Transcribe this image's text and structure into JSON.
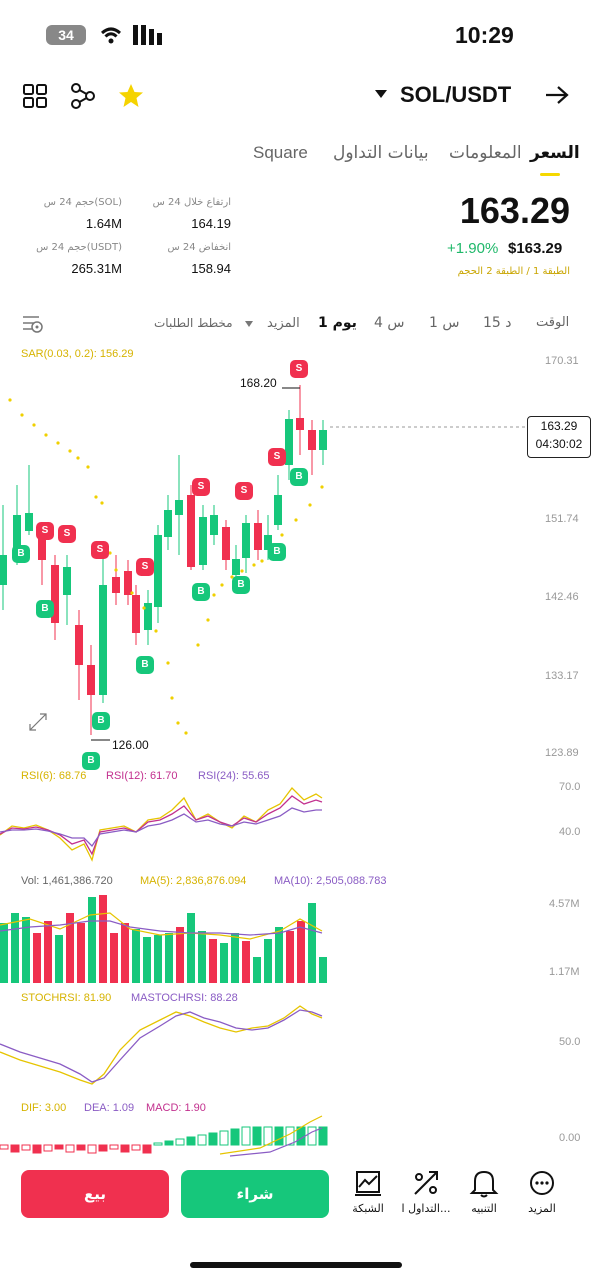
{
  "status_bar": {
    "time": "10:29",
    "battery": "34"
  },
  "header": {
    "pair": "SOL/USDT",
    "icons": [
      "grid-icon",
      "share-icon",
      "star-icon",
      "dropdown-triangle-icon",
      "arrow-right-icon"
    ]
  },
  "tabs": [
    "السعر",
    "المعلومات",
    "بيانات التداول",
    "Square"
  ],
  "price": {
    "last": "163.29",
    "change": "+1.90%",
    "usd": "$163.29",
    "layers": "الطبقة 1 / الطبقة 2   الحجم"
  },
  "stats": {
    "high_label": "ارتفاع خلال 24 س",
    "high_value": "164.19",
    "low_label": "انخفاض 24 س",
    "low_value": "158.94",
    "vol_sol_label": "حجم 24 س(SOL)",
    "vol_sol_value": "1.64M",
    "vol_usdt_label": "حجم 24 س(USDT)",
    "vol_usdt_value": "265.31M"
  },
  "timeframes": {
    "time": "الوقت",
    "m15": "15 د",
    "h1": "1 س",
    "h4": "4 س",
    "d1": "1 يوم",
    "more": "المزيد",
    "orderbook": "مخطط الطلبات"
  },
  "chart": {
    "sar_label": "SAR(0.03, 0.2): 156.29",
    "y_axis": [
      "170.31",
      "151.74",
      "142.46",
      "133.17",
      "123.89"
    ],
    "high_marker": "168.20",
    "low_marker": "126.00",
    "current_price": "163.29",
    "countdown": "04:30:02"
  },
  "rsi": {
    "rsi6": "RSI(6): 68.76",
    "rsi12": "RSI(12): 61.70",
    "rsi24": "RSI(24): 55.65",
    "axis": [
      "70.0",
      "40.0"
    ]
  },
  "vol": {
    "vol": "Vol: 1,461,386.720",
    "ma5": "MA(5): 2,836,876.094",
    "ma10": "MA(10): 2,505,088.783",
    "axis": [
      "4.57M",
      "1.17M"
    ]
  },
  "stoch": {
    "k": "STOCHRSI: 81.90",
    "d": "MASTOCHRSI: 88.28",
    "axis": [
      "50.0"
    ]
  },
  "macd": {
    "dif": "DIF: 3.00",
    "dea": "DEA: 1.09",
    "macd": "MACD: 1.90",
    "axis": [
      "0.00"
    ]
  },
  "actions": {
    "sell": "بيع",
    "buy": "شراء"
  },
  "nav": {
    "grid": "الشبكة",
    "trade": "التداول ا...",
    "alert": "التنبيه",
    "more": "المزيد"
  },
  "colors": {
    "up": "#16c77b",
    "down": "#f0304f",
    "accent": "#f5d800"
  }
}
